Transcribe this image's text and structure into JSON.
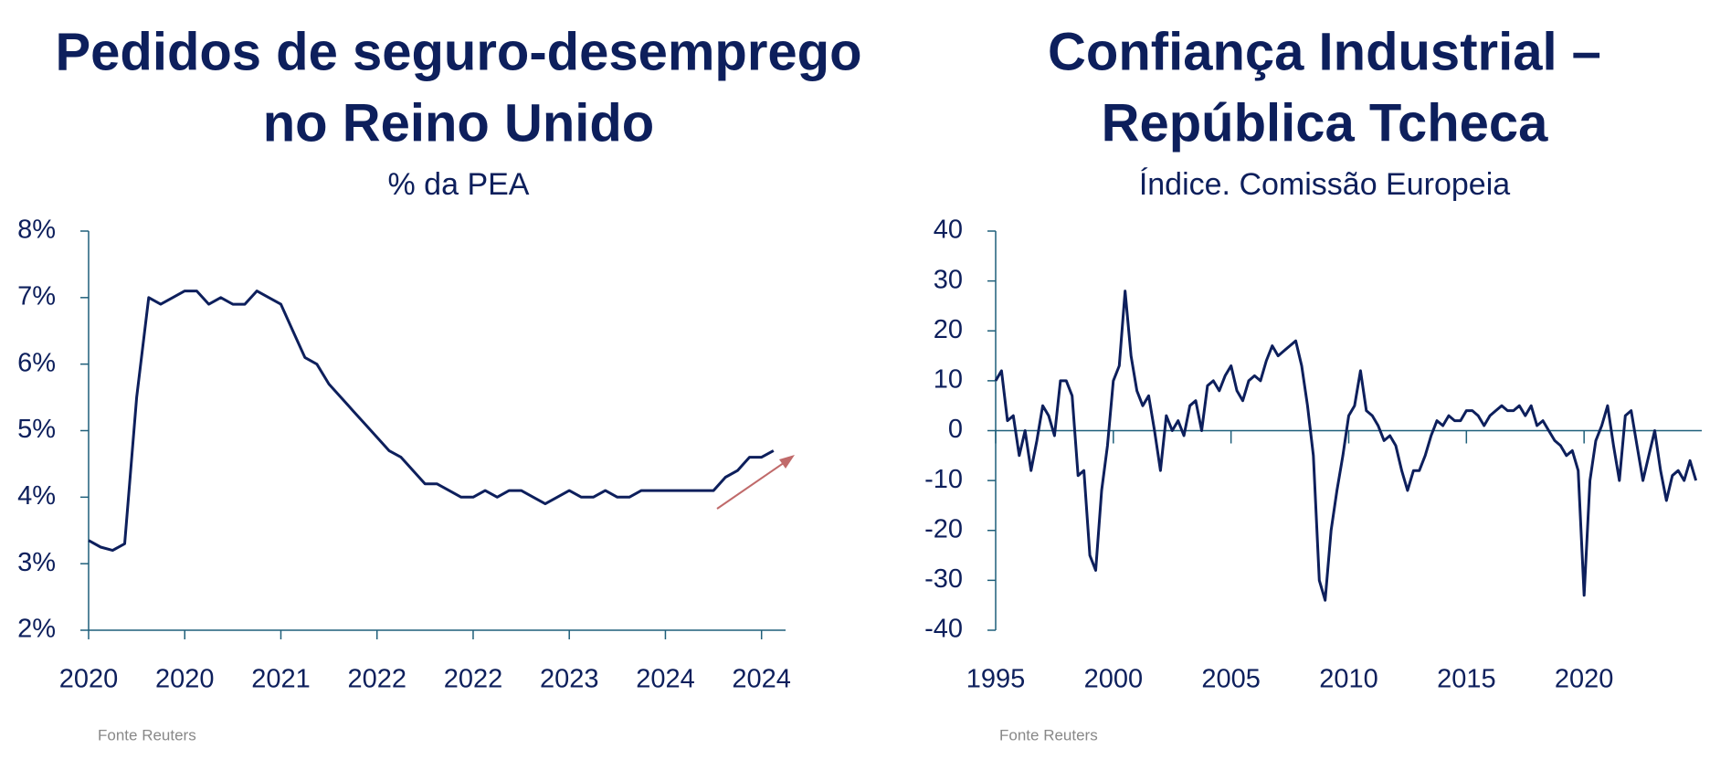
{
  "chart_data": [
    {
      "type": "line",
      "title": [
        "Pedidos de seguro-desemprego",
        "no Reino Unido"
      ],
      "subtitle": "% da PEA",
      "source": "Fonte Reuters",
      "color": "#0d1f5c",
      "x": [
        0,
        1,
        2,
        3,
        4,
        5,
        6,
        7,
        8,
        9,
        10,
        11,
        12,
        13,
        14,
        15,
        16,
        17,
        18,
        19,
        20,
        21,
        22,
        23,
        24,
        25,
        26,
        27,
        28,
        29,
        30,
        31,
        32,
        33,
        34,
        35,
        36,
        37,
        38,
        39,
        40,
        41,
        42,
        43,
        44,
        45,
        46,
        47,
        48,
        49,
        50,
        51,
        52,
        53,
        54,
        55,
        56,
        57
      ],
      "values": [
        3.35,
        3.25,
        3.2,
        3.3,
        5.5,
        7.0,
        6.9,
        7.0,
        7.1,
        7.1,
        6.9,
        7.0,
        6.9,
        6.9,
        7.1,
        7.0,
        6.9,
        6.5,
        6.1,
        6.0,
        5.7,
        5.5,
        5.3,
        5.1,
        4.9,
        4.7,
        4.6,
        4.4,
        4.2,
        4.2,
        4.1,
        4.0,
        4.0,
        4.1,
        4.0,
        4.1,
        4.1,
        4.0,
        3.9,
        4.0,
        4.1,
        4.0,
        4.0,
        4.1,
        4.0,
        4.0,
        4.1,
        4.1,
        4.1,
        4.1,
        4.1,
        4.1,
        4.1,
        4.3,
        4.4,
        4.6,
        4.6,
        4.7
      ],
      "xlim": [
        0,
        58
      ],
      "xticks": [
        {
          "value": 0,
          "label": "2020"
        },
        {
          "value": 8,
          "label": "2020"
        },
        {
          "value": 16,
          "label": "2021"
        },
        {
          "value": 24,
          "label": "2022"
        },
        {
          "value": 32,
          "label": "2022"
        },
        {
          "value": 40,
          "label": "2023"
        },
        {
          "value": 48,
          "label": "2024"
        },
        {
          "value": 56,
          "label": "2024"
        }
      ],
      "ylim": [
        2,
        8
      ],
      "yticks": [
        {
          "value": 2,
          "label": "2%"
        },
        {
          "value": 3,
          "label": "3%"
        },
        {
          "value": 4,
          "label": "4%"
        },
        {
          "value": 5,
          "label": "5%"
        },
        {
          "value": 6,
          "label": "6%"
        },
        {
          "value": 7,
          "label": "7%"
        },
        {
          "value": 8,
          "label": "8%"
        }
      ]
    },
    {
      "type": "line",
      "title": [
        "Confiança Industrial –",
        "República Tcheca"
      ],
      "subtitle": "Índice. Comissão Europeia",
      "source": "Fonte Reuters",
      "color": "#0d1f5c",
      "x": [
        1995,
        1995.25,
        1995.5,
        1995.75,
        1996,
        1996.25,
        1996.5,
        1996.75,
        1997,
        1997.25,
        1997.5,
        1997.75,
        1998,
        1998.25,
        1998.5,
        1998.75,
        1999,
        1999.25,
        1999.5,
        1999.75,
        2000,
        2000.25,
        2000.5,
        2000.75,
        2001,
        2001.25,
        2001.5,
        2001.75,
        2002,
        2002.25,
        2002.5,
        2002.75,
        2003,
        2003.25,
        2003.5,
        2003.75,
        2004,
        2004.25,
        2004.5,
        2004.75,
        2005,
        2005.25,
        2005.5,
        2005.75,
        2006,
        2006.25,
        2006.5,
        2006.75,
        2007,
        2007.25,
        2007.5,
        2007.75,
        2008,
        2008.25,
        2008.5,
        2008.75,
        2009,
        2009.25,
        2009.5,
        2009.75,
        2010,
        2010.25,
        2010.5,
        2010.75,
        2011,
        2011.25,
        2011.5,
        2011.75,
        2012,
        2012.25,
        2012.5,
        2012.75,
        2013,
        2013.25,
        2013.5,
        2013.75,
        2014,
        2014.25,
        2014.5,
        2014.75,
        2015,
        2015.25,
        2015.5,
        2015.75,
        2016,
        2016.25,
        2016.5,
        2016.75,
        2017,
        2017.25,
        2017.5,
        2017.75,
        2018,
        2018.25,
        2018.5,
        2018.75,
        2019,
        2019.25,
        2019.5,
        2019.75,
        2020,
        2020.25,
        2020.5,
        2020.75,
        2021,
        2021.25,
        2021.5,
        2021.75,
        2022,
        2022.25,
        2022.5,
        2022.75,
        2023,
        2023.25,
        2023.5,
        2023.75,
        2024,
        2024.25,
        2024.5,
        2024.75
      ],
      "values": [
        10,
        12,
        2,
        3,
        -5,
        0,
        -8,
        -2,
        5,
        3,
        -1,
        10,
        10,
        7,
        -9,
        -8,
        -25,
        -28,
        -12,
        -3,
        10,
        13,
        28,
        15,
        8,
        5,
        7,
        0,
        -8,
        3,
        0,
        2,
        -1,
        5,
        6,
        0,
        9,
        10,
        8,
        11,
        13,
        8,
        6,
        10,
        11,
        10,
        14,
        17,
        15,
        16,
        17,
        18,
        13,
        5,
        -5,
        -30,
        -34,
        -20,
        -12,
        -5,
        3,
        5,
        12,
        4,
        3,
        1,
        -2,
        -1,
        -3,
        -8,
        -12,
        -8,
        -8,
        -5,
        -1,
        2,
        1,
        3,
        2,
        2,
        4,
        4,
        3,
        1,
        3,
        4,
        5,
        4,
        4,
        5,
        3,
        5,
        1,
        2,
        0,
        -2,
        -3,
        -5,
        -4,
        -8,
        -33,
        -10,
        -2,
        1,
        5,
        -3,
        -10,
        3,
        4,
        -3,
        -10,
        -5,
        0,
        -8,
        -14,
        -9,
        -8,
        -10,
        -6,
        -10
      ],
      "xlim": [
        1995,
        2025
      ],
      "xticks": [
        1995,
        2000,
        2005,
        2010,
        2015,
        2020
      ],
      "ylim": [
        -40,
        40
      ],
      "yticks": [
        -40,
        -30,
        -20,
        -10,
        0,
        10,
        20,
        30,
        40
      ]
    }
  ]
}
